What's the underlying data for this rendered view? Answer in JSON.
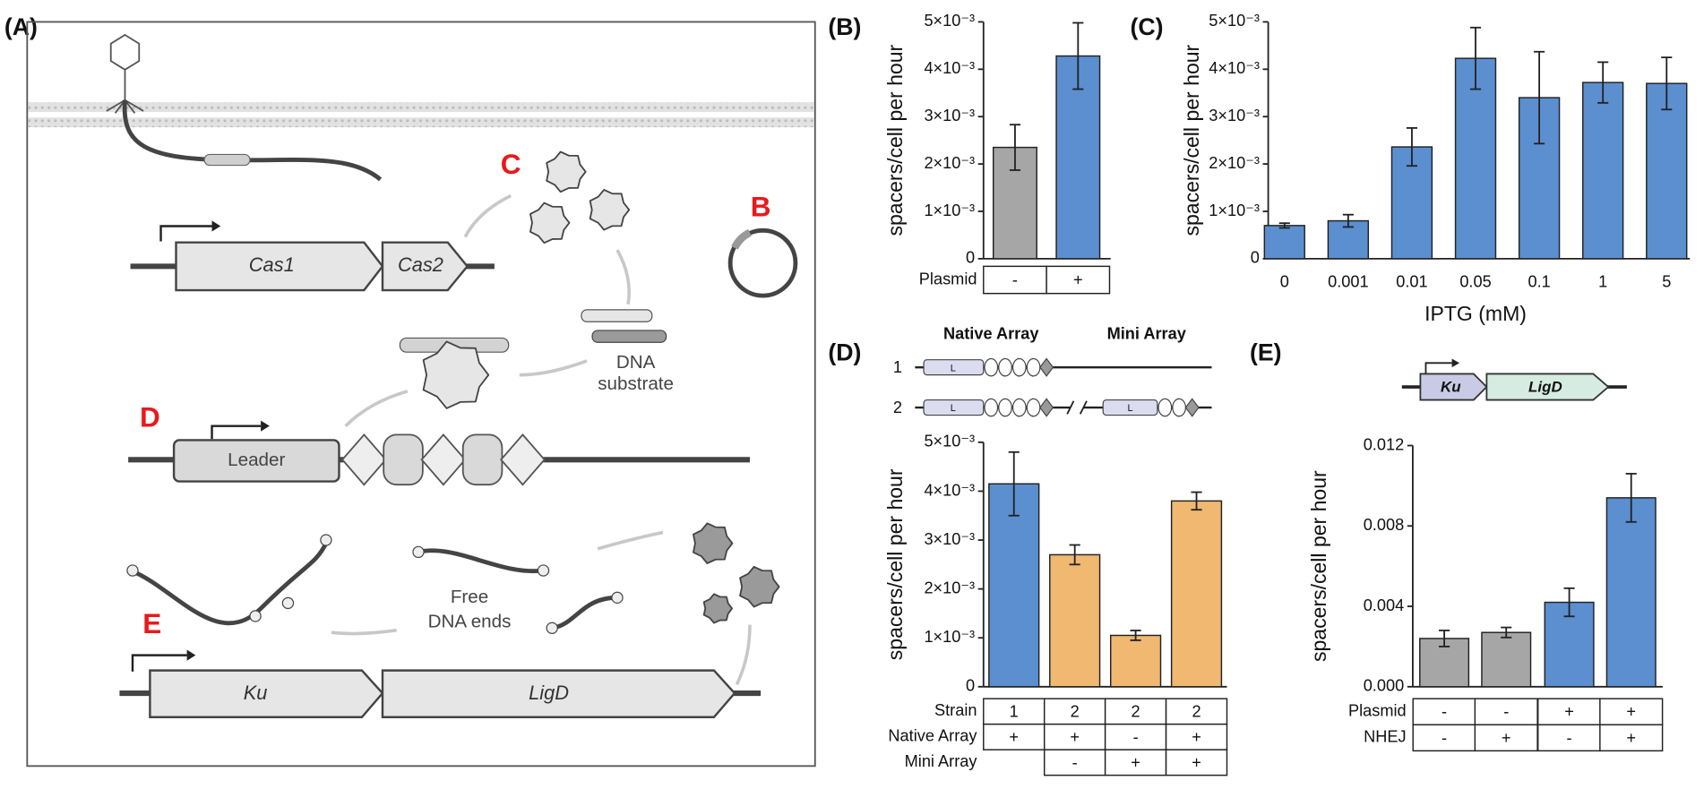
{
  "panel_labels": [
    "(A)",
    "(B)",
    "(C)",
    "(D)",
    "(E)"
  ],
  "diagram": {
    "labels": [
      "C",
      "B",
      "D",
      "E"
    ],
    "cas1": "Cas1",
    "cas2": "Cas2",
    "dna_substrate": [
      "DNA",
      "substrate"
    ],
    "leader": "Leader",
    "free_dna_ends": [
      "Free",
      "DNA ends"
    ],
    "ku": "Ku",
    "ligd": "LigD"
  },
  "chart_data": [
    {
      "type": "bar",
      "ylabel": "spacers/cell per hour",
      "values": [
        0.00235,
        0.00428
      ],
      "errors": [
        0.00048,
        0.0007
      ],
      "colors": [
        "#a6a6a6",
        "#5b8fd0"
      ],
      "ylim": [
        0,
        0.005
      ],
      "yticks": [
        0,
        {
          "value": 0.001,
          "label": "1×10⁻³"
        },
        {
          "value": 0.002,
          "label": "2×10⁻³"
        },
        {
          "value": 0.003,
          "label": "3×10⁻³"
        },
        {
          "value": 0.004,
          "label": "4×10⁻³"
        },
        {
          "value": 0.005,
          "label": "5×10⁻³"
        }
      ],
      "table": {
        "rows": [
          {
            "label": "Plasmid",
            "cells": [
              "-",
              "+"
            ]
          }
        ]
      }
    },
    {
      "type": "bar",
      "ylabel": "spacers/cell per hour",
      "xlabel": "IPTG (mM)",
      "categories": [
        "0",
        "0.001",
        "0.01",
        "0.05",
        "0.1",
        "1",
        "5"
      ],
      "values": [
        0.0007,
        0.0008,
        0.00236,
        0.00423,
        0.0034,
        0.00372,
        0.0037
      ],
      "errors": [
        5e-05,
        0.00013,
        0.0004,
        0.00065,
        0.00097,
        0.00043,
        0.00055
      ],
      "colors": [
        "#5b8fd0",
        "#5b8fd0",
        "#5b8fd0",
        "#5b8fd0",
        "#5b8fd0",
        "#5b8fd0",
        "#5b8fd0"
      ],
      "ylim": [
        0,
        0.005
      ],
      "yticks": [
        0,
        {
          "value": 0.001,
          "label": "1×10⁻³"
        },
        {
          "value": 0.002,
          "label": "2×10⁻³"
        },
        {
          "value": 0.003,
          "label": "3×10⁻³"
        },
        {
          "value": 0.004,
          "label": "4×10⁻³"
        },
        {
          "value": 0.005,
          "label": "5×10⁻³"
        }
      ]
    },
    {
      "type": "bar",
      "ylabel": "spacers/cell per hour",
      "values": [
        0.00415,
        0.0027,
        0.00105,
        0.0038
      ],
      "errors": [
        0.00065,
        0.0002,
        0.0001,
        0.00018
      ],
      "colors": [
        "#5b8fd0",
        "#f0b870",
        "#f0b870",
        "#f0b870"
      ],
      "ylim": [
        0,
        0.005
      ],
      "yticks": [
        0,
        {
          "value": 0.001,
          "label": "1×10⁻³"
        },
        {
          "value": 0.002,
          "label": "2×10⁻³"
        },
        {
          "value": 0.003,
          "label": "3×10⁻³"
        },
        {
          "value": 0.004,
          "label": "4×10⁻³"
        },
        {
          "value": 0.005,
          "label": "5×10⁻³"
        }
      ],
      "table": {
        "rows": [
          {
            "label": "Strain",
            "cells": [
              "1",
              "2",
              "2",
              "2"
            ]
          },
          {
            "label": "Native Array",
            "cells": [
              "+",
              "+",
              "-",
              "+"
            ]
          },
          {
            "label": "Mini Array",
            "cells": [
              null,
              "-",
              "+",
              "+"
            ]
          }
        ]
      },
      "schematic": {
        "headers": [
          "Native Array",
          "Mini Array"
        ],
        "rows": [
          "1",
          "2"
        ],
        "leader": "L"
      }
    },
    {
      "type": "bar",
      "ylabel": "spacers/cell per hour",
      "values": [
        0.0024,
        0.0027,
        0.0042,
        0.0094
      ],
      "errors": [
        0.0004,
        0.00025,
        0.0007,
        0.0012
      ],
      "colors": [
        "#a6a6a6",
        "#a6a6a6",
        "#5b8fd0",
        "#5b8fd0"
      ],
      "ylim": [
        0,
        0.012
      ],
      "yticks": [
        {
          "value": 0,
          "label": "0.000"
        },
        {
          "value": 0.004,
          "label": "0.004"
        },
        {
          "value": 0.008,
          "label": "0.008"
        },
        {
          "value": 0.012,
          "label": "0.012"
        }
      ],
      "table": {
        "rows": [
          {
            "label": "Plasmid",
            "cells": [
              "-",
              "-",
              "+",
              "+"
            ]
          },
          {
            "label": "NHEJ",
            "cells": [
              "-",
              "+",
              "-",
              "+"
            ]
          }
        ]
      },
      "genes": [
        "Ku",
        "LigD"
      ]
    }
  ]
}
